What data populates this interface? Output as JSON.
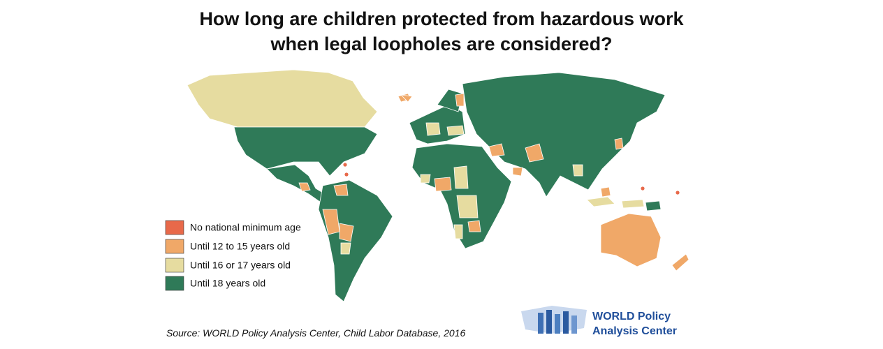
{
  "title": [
    "How long are children protected from hazardous work",
    "when legal loopholes are considered?"
  ],
  "legend": [
    {
      "label": "No national minimum age",
      "color": "#e8694a"
    },
    {
      "label": "Until 12 to 15 years old",
      "color": "#f0a868"
    },
    {
      "label": "Until 16 or 17 years old",
      "color": "#e6dca0"
    },
    {
      "label": "Until 18 years old",
      "color": "#2f7a58"
    }
  ],
  "source": "Source: WORLD Policy Analysis Center, Child Labor Database, 2016",
  "logo": [
    "WORLD Policy",
    "Analysis Center"
  ]
}
